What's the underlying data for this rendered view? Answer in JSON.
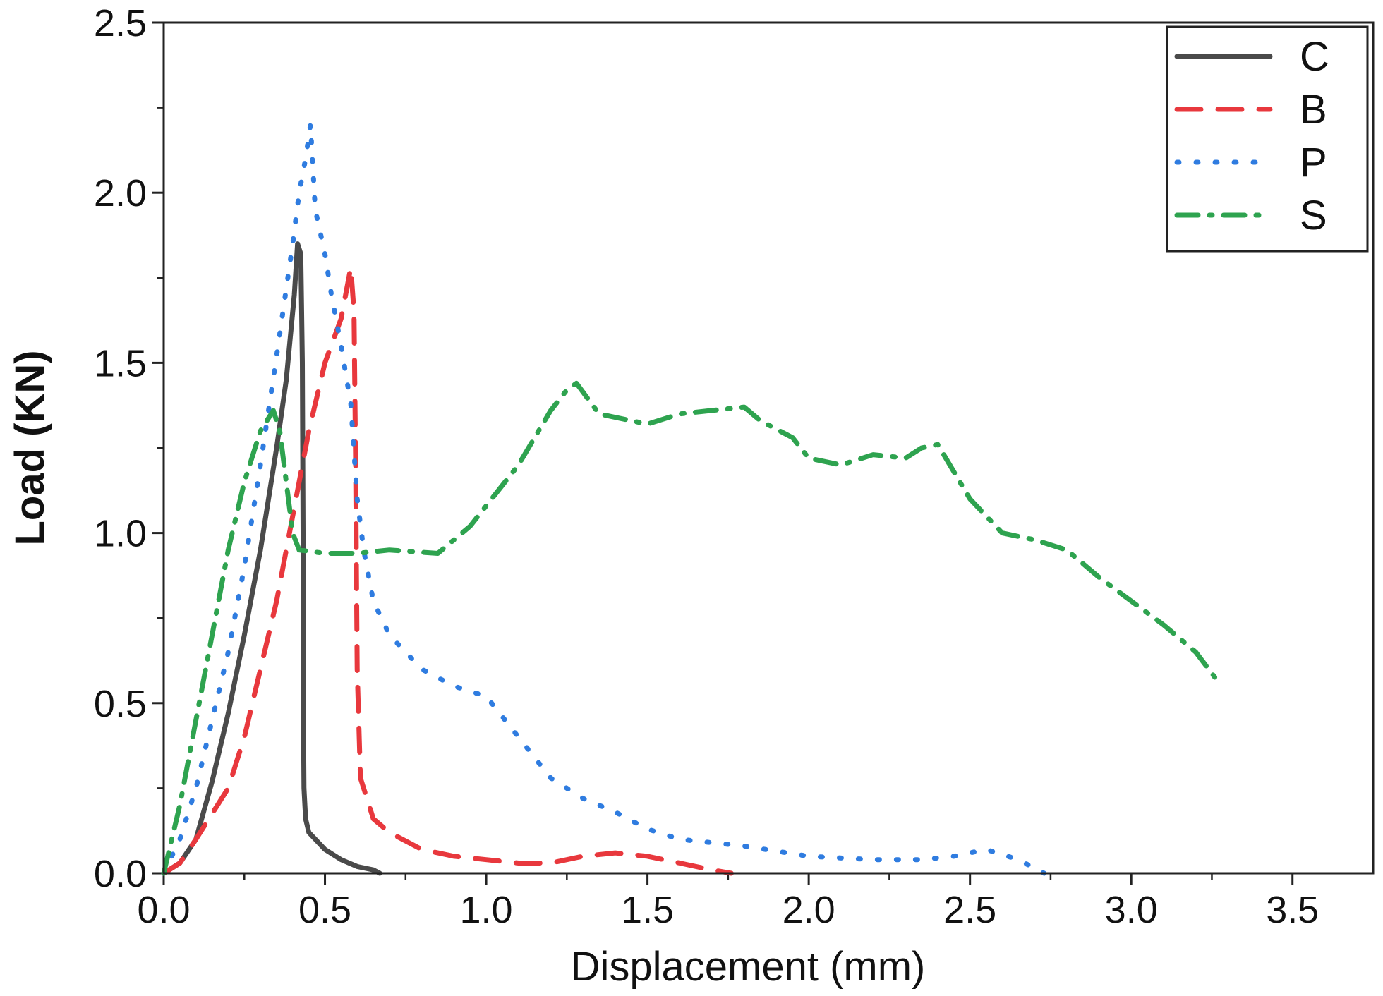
{
  "chart_data": {
    "type": "line",
    "title": "",
    "xlabel": "Displacement (mm)",
    "ylabel": "Load (KN)",
    "xlim": [
      0,
      3.75
    ],
    "ylim": [
      0,
      2.5
    ],
    "x_ticks": [
      "0.0",
      "0.5",
      "1.0",
      "1.5",
      "2.0",
      "2.5",
      "3.0",
      "3.5"
    ],
    "y_ticks": [
      "0.0",
      "0.5",
      "1.0",
      "1.5",
      "2.0",
      "2.5"
    ],
    "legend_position": "top-right",
    "series": [
      {
        "name": "C",
        "color": "#4a4a4a",
        "style": "solid",
        "points": [
          [
            0,
            0
          ],
          [
            0.05,
            0.03
          ],
          [
            0.1,
            0.1
          ],
          [
            0.15,
            0.27
          ],
          [
            0.2,
            0.47
          ],
          [
            0.25,
            0.7
          ],
          [
            0.3,
            0.95
          ],
          [
            0.35,
            1.25
          ],
          [
            0.38,
            1.45
          ],
          [
            0.405,
            1.7
          ],
          [
            0.415,
            1.85
          ],
          [
            0.425,
            1.82
          ],
          [
            0.43,
            1.5
          ],
          [
            0.432,
            1.0
          ],
          [
            0.433,
            0.5
          ],
          [
            0.435,
            0.25
          ],
          [
            0.44,
            0.16
          ],
          [
            0.45,
            0.12
          ],
          [
            0.5,
            0.07
          ],
          [
            0.55,
            0.04
          ],
          [
            0.6,
            0.02
          ],
          [
            0.65,
            0.01
          ],
          [
            0.67,
            0.0
          ]
        ]
      },
      {
        "name": "B",
        "color": "#e8383d",
        "style": "dashed",
        "points": [
          [
            0,
            0
          ],
          [
            0.05,
            0.03
          ],
          [
            0.1,
            0.1
          ],
          [
            0.2,
            0.25
          ],
          [
            0.25,
            0.4
          ],
          [
            0.3,
            0.6
          ],
          [
            0.35,
            0.8
          ],
          [
            0.4,
            1.05
          ],
          [
            0.45,
            1.3
          ],
          [
            0.5,
            1.5
          ],
          [
            0.55,
            1.63
          ],
          [
            0.58,
            1.78
          ],
          [
            0.59,
            1.65
          ],
          [
            0.595,
            1.2
          ],
          [
            0.6,
            0.6
          ],
          [
            0.61,
            0.28
          ],
          [
            0.65,
            0.16
          ],
          [
            0.7,
            0.12
          ],
          [
            0.8,
            0.07
          ],
          [
            0.9,
            0.05
          ],
          [
            1.0,
            0.04
          ],
          [
            1.1,
            0.03
          ],
          [
            1.2,
            0.03
          ],
          [
            1.3,
            0.05
          ],
          [
            1.4,
            0.06
          ],
          [
            1.5,
            0.05
          ],
          [
            1.6,
            0.03
          ],
          [
            1.7,
            0.01
          ],
          [
            1.76,
            0.0
          ]
        ]
      },
      {
        "name": "P",
        "color": "#2f7ce0",
        "style": "dotted",
        "points": [
          [
            0,
            0
          ],
          [
            0.05,
            0.1
          ],
          [
            0.1,
            0.25
          ],
          [
            0.15,
            0.45
          ],
          [
            0.2,
            0.65
          ],
          [
            0.25,
            0.9
          ],
          [
            0.3,
            1.2
          ],
          [
            0.35,
            1.52
          ],
          [
            0.4,
            1.85
          ],
          [
            0.42,
            2.0
          ],
          [
            0.44,
            2.1
          ],
          [
            0.455,
            2.2
          ],
          [
            0.47,
            1.95
          ],
          [
            0.5,
            1.82
          ],
          [
            0.52,
            1.7
          ],
          [
            0.55,
            1.55
          ],
          [
            0.58,
            1.38
          ],
          [
            0.6,
            1.1
          ],
          [
            0.62,
            0.95
          ],
          [
            0.65,
            0.8
          ],
          [
            0.7,
            0.7
          ],
          [
            0.8,
            0.6
          ],
          [
            0.9,
            0.55
          ],
          [
            1.0,
            0.52
          ],
          [
            1.1,
            0.4
          ],
          [
            1.2,
            0.28
          ],
          [
            1.3,
            0.22
          ],
          [
            1.4,
            0.18
          ],
          [
            1.5,
            0.13
          ],
          [
            1.6,
            0.1
          ],
          [
            1.8,
            0.08
          ],
          [
            2.0,
            0.05
          ],
          [
            2.2,
            0.04
          ],
          [
            2.35,
            0.04
          ],
          [
            2.45,
            0.05
          ],
          [
            2.55,
            0.07
          ],
          [
            2.65,
            0.04
          ],
          [
            2.73,
            0.0
          ]
        ]
      },
      {
        "name": "S",
        "color": "#2ea34f",
        "style": "dashdot",
        "points": [
          [
            0,
            0
          ],
          [
            0.05,
            0.2
          ],
          [
            0.1,
            0.45
          ],
          [
            0.15,
            0.7
          ],
          [
            0.2,
            0.95
          ],
          [
            0.25,
            1.15
          ],
          [
            0.3,
            1.3
          ],
          [
            0.34,
            1.36
          ],
          [
            0.36,
            1.3
          ],
          [
            0.38,
            1.15
          ],
          [
            0.4,
            1.0
          ],
          [
            0.42,
            0.95
          ],
          [
            0.5,
            0.94
          ],
          [
            0.6,
            0.94
          ],
          [
            0.7,
            0.95
          ],
          [
            0.85,
            0.94
          ],
          [
            0.95,
            1.02
          ],
          [
            1.0,
            1.08
          ],
          [
            1.1,
            1.2
          ],
          [
            1.15,
            1.28
          ],
          [
            1.2,
            1.36
          ],
          [
            1.25,
            1.42
          ],
          [
            1.28,
            1.44
          ],
          [
            1.35,
            1.35
          ],
          [
            1.5,
            1.32
          ],
          [
            1.6,
            1.35
          ],
          [
            1.7,
            1.36
          ],
          [
            1.8,
            1.37
          ],
          [
            1.85,
            1.33
          ],
          [
            1.95,
            1.28
          ],
          [
            2.0,
            1.22
          ],
          [
            2.1,
            1.2
          ],
          [
            2.2,
            1.23
          ],
          [
            2.3,
            1.22
          ],
          [
            2.35,
            1.25
          ],
          [
            2.4,
            1.26
          ],
          [
            2.5,
            1.1
          ],
          [
            2.6,
            1.0
          ],
          [
            2.7,
            0.98
          ],
          [
            2.8,
            0.95
          ],
          [
            2.9,
            0.87
          ],
          [
            3.0,
            0.8
          ],
          [
            3.1,
            0.73
          ],
          [
            3.2,
            0.65
          ],
          [
            3.28,
            0.55
          ]
        ]
      }
    ]
  }
}
